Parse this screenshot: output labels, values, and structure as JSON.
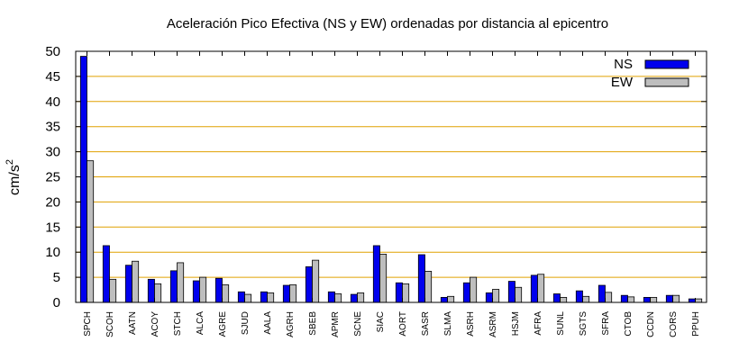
{
  "chart_data": {
    "type": "bar",
    "title": "Aceleración Pico Efectiva (NS y EW) ordenadas por distancia al epicentro",
    "ylabel": "cm/s",
    "ylabel_sup": "2",
    "xlabel": "",
    "ylim": [
      0,
      50
    ],
    "yticks": [
      0,
      5,
      10,
      15,
      20,
      25,
      30,
      35,
      40,
      45,
      50
    ],
    "grid": true,
    "grid_color": "#e0a000",
    "legend_position": "top-right",
    "categories": [
      "SPCH",
      "SCOH",
      "AATN",
      "ACOY",
      "STCH",
      "ALCA",
      "AGRE",
      "SJUD",
      "AALA",
      "AGRH",
      "SBEB",
      "APMR",
      "SCNE",
      "SIAC",
      "AORT",
      "SASR",
      "SLMA",
      "ASRH",
      "ASRM",
      "HSJM",
      "AFRA",
      "SUNL",
      "SGTS",
      "SFRA",
      "CTOB",
      "CCDN",
      "CORS",
      "PPUH"
    ],
    "series": [
      {
        "name": "NS",
        "color": "#0000ee",
        "values": [
          49.0,
          11.3,
          7.4,
          4.6,
          6.3,
          4.3,
          4.8,
          2.1,
          2.1,
          3.4,
          7.1,
          2.1,
          1.6,
          11.3,
          3.9,
          9.5,
          1.0,
          3.9,
          1.9,
          4.2,
          5.4,
          1.7,
          2.3,
          3.4,
          1.4,
          1.0,
          1.4,
          0.7
        ]
      },
      {
        "name": "EW",
        "color": "#bebebe",
        "values": [
          28.2,
          4.6,
          8.2,
          3.7,
          7.9,
          5.0,
          3.5,
          1.6,
          1.9,
          3.5,
          8.4,
          1.7,
          1.9,
          9.6,
          3.7,
          6.2,
          1.2,
          5.0,
          2.6,
          3.0,
          5.6,
          1.0,
          1.2,
          2.0,
          1.1,
          1.0,
          1.4,
          0.7
        ]
      }
    ]
  }
}
